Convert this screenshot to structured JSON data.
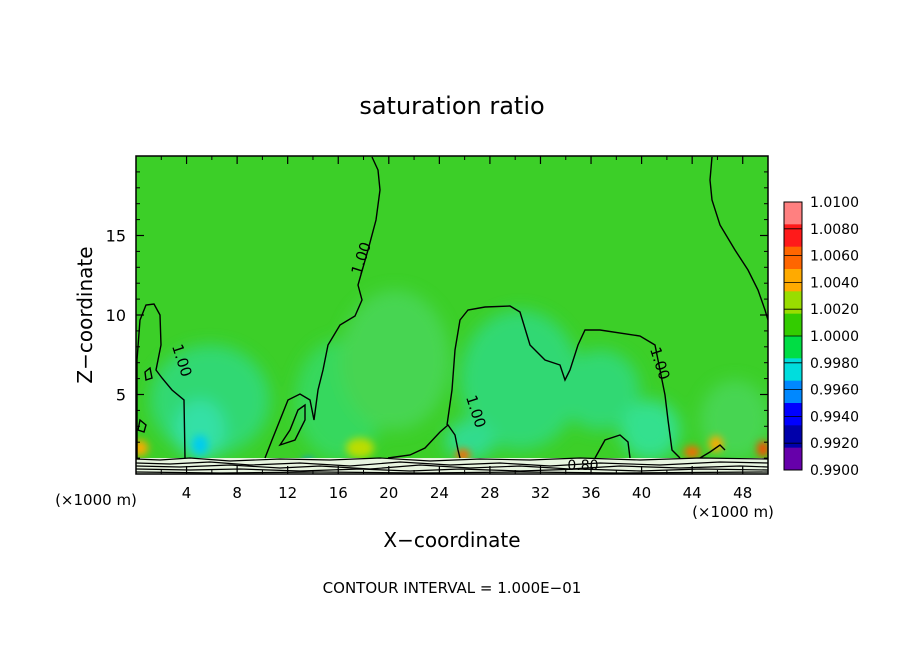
{
  "chart_data": {
    "type": "heatmap",
    "title": "saturation ratio",
    "xlabel": "X−coordinate",
    "ylabel": "Z−coordinate",
    "x_unit_left": "(×1000 m)",
    "x_unit_right": "(×1000 m)",
    "xlim": [
      0,
      50
    ],
    "ylim": [
      0,
      20
    ],
    "xticks": [
      "4",
      "8",
      "12",
      "16",
      "20",
      "24",
      "28",
      "32",
      "36",
      "40",
      "44",
      "48"
    ],
    "xtick_values": [
      4,
      8,
      12,
      16,
      20,
      24,
      28,
      32,
      36,
      40,
      44,
      48
    ],
    "yticks": [
      "5",
      "10",
      "15"
    ],
    "ytick_values": [
      5,
      10,
      15
    ],
    "contour_interval_text": "CONTOUR INTERVAL = 1.000E−01",
    "contour_labels": [
      "1.00",
      "1.00",
      "1.00",
      "1.00",
      "0.80"
    ],
    "colorbar": {
      "labels": [
        "1.0100",
        "1.0080",
        "1.0060",
        "1.0040",
        "1.0020",
        "1.0000",
        "0.9980",
        "0.9960",
        "0.9940",
        "0.9920",
        "0.9900"
      ],
      "colors": [
        "#ff8080",
        "#ff1a1a",
        "#ff6600",
        "#ffaa00",
        "#99dd00",
        "#33cc00",
        "#00dd44",
        "#00dddd",
        "#0088ff",
        "#0000ff",
        "#0000aa",
        "#6600aa"
      ]
    },
    "field_base_color": "#3ccf28",
    "field_low_color": "#33e08a"
  }
}
